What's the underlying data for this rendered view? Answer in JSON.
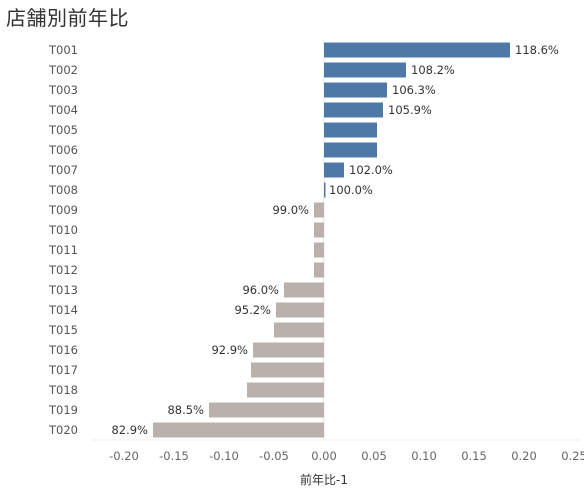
{
  "title": "店舗別前年比",
  "chart_data": {
    "type": "bar",
    "orientation": "horizontal",
    "title": "店舗別前年比",
    "xlabel": "前年比-1",
    "ylabel": "",
    "xlim": [
      -0.25,
      0.25
    ],
    "xticks": [
      -0.2,
      -0.15,
      -0.1,
      -0.05,
      0.0,
      0.05,
      0.1,
      0.15,
      0.2,
      0.25
    ],
    "xtick_labels": [
      "-0.20",
      "-0.15",
      "-0.10",
      "-0.05",
      "0.00",
      "0.05",
      "0.10",
      "0.15",
      "0.20",
      "0.25"
    ],
    "positive_color": "#4e79a7",
    "negative_color": "#bab0ac",
    "categories": [
      "T001",
      "T002",
      "T003",
      "T004",
      "T005",
      "T006",
      "T007",
      "T008",
      "T009",
      "T010",
      "T011",
      "T012",
      "T013",
      "T014",
      "T015",
      "T016",
      "T017",
      "T018",
      "T019",
      "T020"
    ],
    "values": [
      0.186,
      0.082,
      0.063,
      0.059,
      0.053,
      0.053,
      0.02,
      0.0,
      -0.01,
      -0.01,
      -0.01,
      -0.01,
      -0.04,
      -0.048,
      -0.05,
      -0.071,
      -0.073,
      -0.077,
      -0.115,
      -0.171
    ],
    "data_labels": [
      "118.6%",
      "108.2%",
      "106.3%",
      "105.9%",
      "",
      "",
      "102.0%",
      "100.0%",
      "99.0%",
      "",
      "",
      "",
      "96.0%",
      "95.2%",
      "",
      "92.9%",
      "",
      "",
      "88.5%",
      "82.9%"
    ]
  }
}
